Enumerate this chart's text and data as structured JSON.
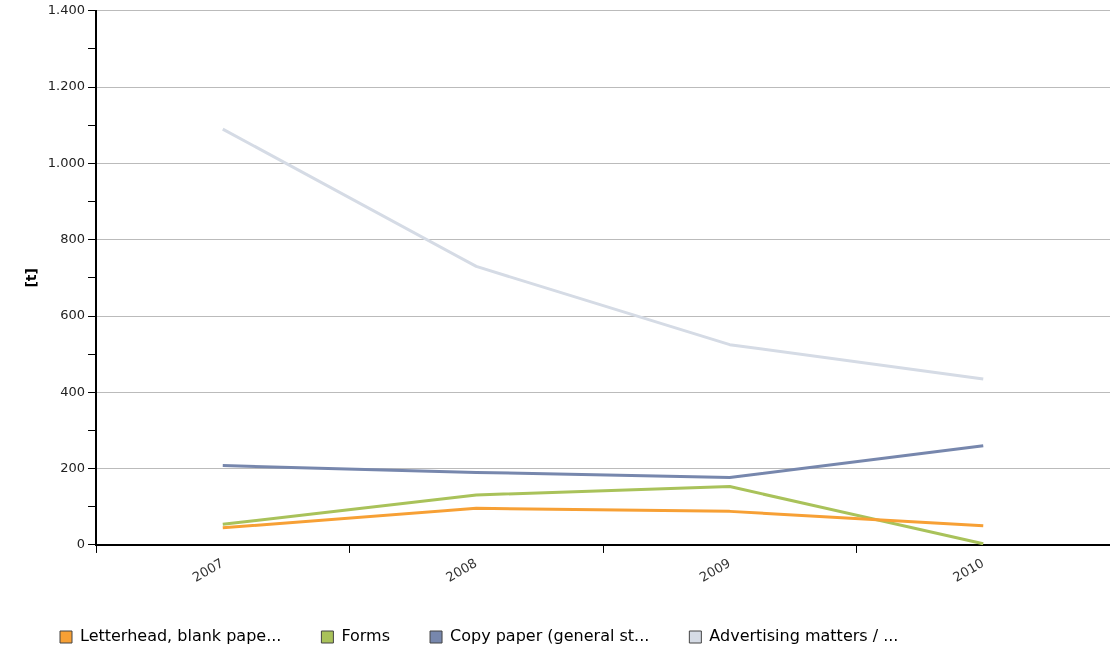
{
  "chart_data": {
    "type": "line",
    "ylabel": "[t]",
    "categories": [
      "2007",
      "2008",
      "2009",
      "2010"
    ],
    "series": [
      {
        "name": "Letterhead, blank pape...",
        "color": "#f7a035",
        "values": [
          45,
          96,
          88,
          50
        ]
      },
      {
        "name": "Forms",
        "color": "#a9c25a",
        "values": [
          54,
          131,
          153,
          3
        ]
      },
      {
        "name": "Copy paper (general st...",
        "color": "#7787ad",
        "values": [
          208,
          190,
          177,
          260
        ]
      },
      {
        "name": "Advertising matters / ...",
        "color": "#d5dbe5",
        "values": [
          1090,
          730,
          525,
          435
        ]
      }
    ],
    "ylim": [
      0,
      1400
    ],
    "yticks": [
      {
        "value": 0,
        "label": "0"
      },
      {
        "value": 100,
        "label": null
      },
      {
        "value": 200,
        "label": "200"
      },
      {
        "value": 300,
        "label": null
      },
      {
        "value": 400,
        "label": "400"
      },
      {
        "value": 500,
        "label": null
      },
      {
        "value": 600,
        "label": "600"
      },
      {
        "value": 700,
        "label": null
      },
      {
        "value": 800,
        "label": "800"
      },
      {
        "value": 900,
        "label": null
      },
      {
        "value": 1000,
        "label": "1.000"
      },
      {
        "value": 1100,
        "label": null
      },
      {
        "value": 1200,
        "label": "1.200"
      },
      {
        "value": 1300,
        "label": null
      },
      {
        "value": 1400,
        "label": "1.400"
      }
    ],
    "grid": "y",
    "legend": "bottom left",
    "marker": "none",
    "line_style": "solid"
  }
}
